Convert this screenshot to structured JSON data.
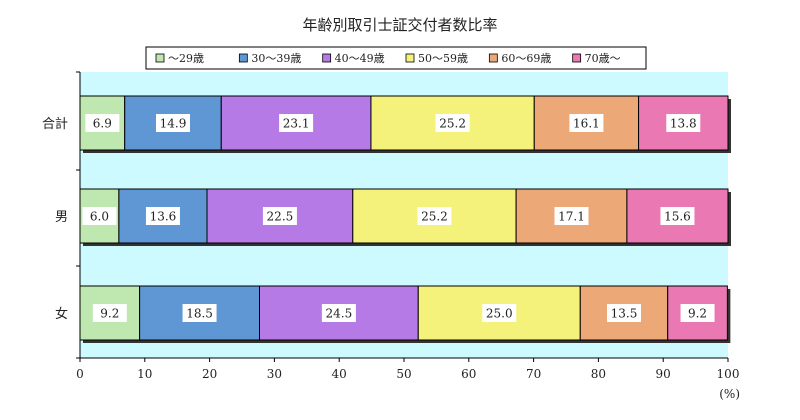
{
  "chart_data": {
    "type": "bar",
    "orientation": "horizontal",
    "stacked": true,
    "title": "年齢別取引士証交付者数比率",
    "categories": [
      "合計",
      "男",
      "女"
    ],
    "series": [
      {
        "name": "～29歳",
        "color": "#bfe8b0",
        "values": [
          6.9,
          6.0,
          9.2
        ]
      },
      {
        "name": "30～39歳",
        "color": "#5f97d4",
        "values": [
          14.9,
          13.6,
          18.5
        ]
      },
      {
        "name": "40～49歳",
        "color": "#b67ae6",
        "values": [
          23.1,
          22.5,
          24.5
        ]
      },
      {
        "name": "50～59歳",
        "color": "#f4f27a",
        "values": [
          25.2,
          25.2,
          25.0
        ]
      },
      {
        "name": "60～69歳",
        "color": "#eda877",
        "values": [
          16.1,
          17.1,
          13.5
        ]
      },
      {
        "name": "70歳～",
        "color": "#ea78b3",
        "values": [
          13.8,
          15.6,
          9.2
        ]
      }
    ],
    "x_ticks": [
      0,
      10,
      20,
      30,
      40,
      50,
      60,
      70,
      80,
      90,
      100
    ],
    "xlim": [
      0,
      100
    ],
    "x_unit": "(%)",
    "legend_position": "top",
    "plot_background": "#ccfaff"
  }
}
